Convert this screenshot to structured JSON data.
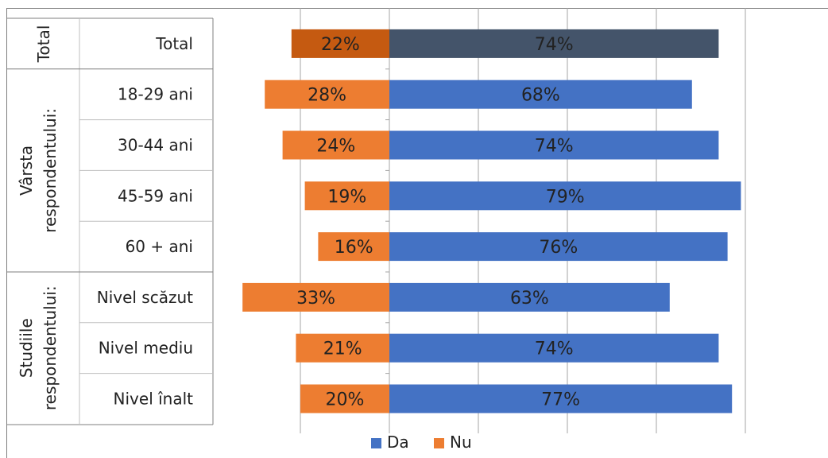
{
  "chart_data": {
    "type": "bar",
    "orientation": "horizontal-diverging",
    "groups": [
      {
        "label": "Total",
        "rows": [
          0
        ]
      },
      {
        "label_lines": [
          "Vârsta",
          "respondentului:"
        ],
        "rows": [
          1,
          2,
          3,
          4
        ]
      },
      {
        "label_lines": [
          "Studiile",
          "respondentului:"
        ],
        "rows": [
          5,
          6,
          7
        ]
      }
    ],
    "categories": [
      "Total",
      "18-29 ani",
      "30-44 ani",
      "45-59 ani",
      "60 + ani",
      "Nivel scăzut",
      "Nivel mediu",
      "Nivel înalt"
    ],
    "series": [
      {
        "name": "Da",
        "values": [
          74,
          68,
          74,
          79,
          76,
          63,
          74,
          77
        ],
        "value_labels": [
          "74%",
          "68%",
          "74%",
          "79%",
          "76%",
          "63%",
          "74%",
          "77%"
        ]
      },
      {
        "name": "Nu",
        "values": [
          22,
          28,
          24,
          19,
          16,
          33,
          21,
          20
        ],
        "value_labels": [
          "22%",
          "28%",
          "24%",
          "19%",
          "16%",
          "33%",
          "21%",
          "20%"
        ]
      }
    ],
    "xlim": [
      -40,
      80
    ],
    "gridlines_at": [
      -20,
      0,
      20,
      40,
      60,
      80
    ],
    "grid": true,
    "legend_placement": "bottom",
    "colors": {
      "da": "#4472C4",
      "nu": "#ED7D31",
      "total_da": "#44546A",
      "total_nu": "#C55A11",
      "grid": "#A6A6A6",
      "border": "#7F7F7F",
      "divider": "#BFBFBF"
    }
  }
}
